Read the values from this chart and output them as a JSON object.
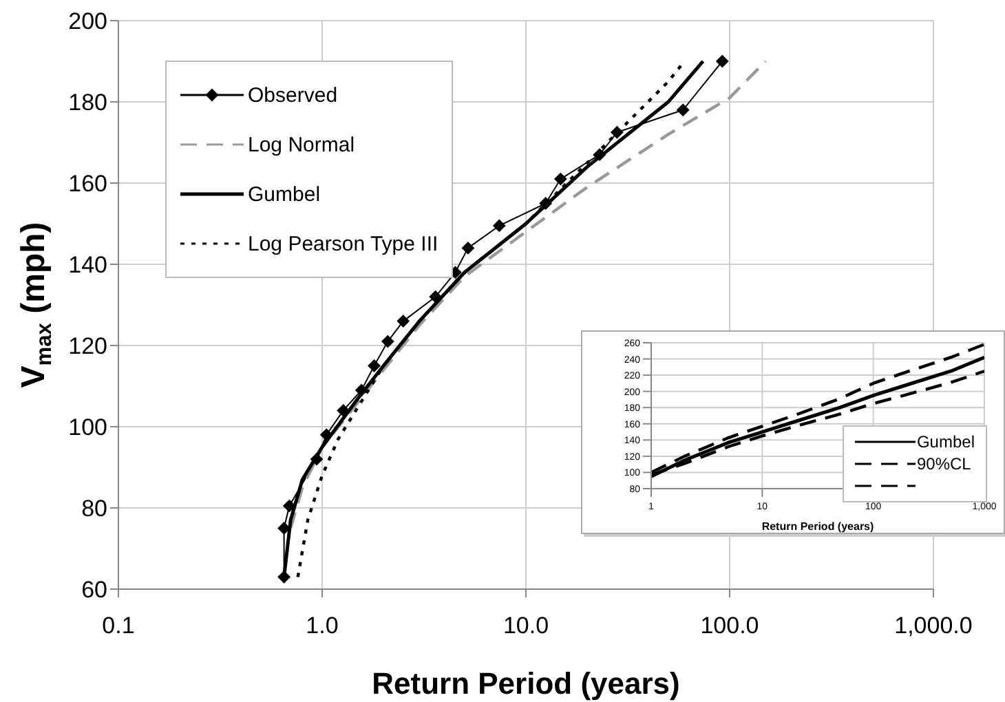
{
  "chart_data": [
    {
      "type": "line",
      "xlabel": "Return Period (years)",
      "ylabel": "V$_{max}$ (mph)",
      "log": "x",
      "grid": true,
      "legend": "top left",
      "xlim": [
        0.1,
        1000
      ],
      "xticks": [
        {
          "value": 0.1,
          "label": "0.1"
        },
        {
          "value": 1,
          "label": "1.0"
        },
        {
          "value": 10,
          "label": "10.0"
        },
        {
          "value": 100,
          "label": "100.0"
        },
        {
          "value": 1000,
          "label": "1,000.0"
        }
      ],
      "ylim": [
        60,
        200
      ],
      "yticks": [
        60,
        80,
        100,
        120,
        140,
        160,
        180,
        200
      ],
      "series": [
        {
          "name": "Observed",
          "color": "#000000",
          "marker": "diamond",
          "line_style": "solid",
          "x": [
            0.65,
            0.65,
            0.69,
            0.94,
            1.05,
            1.27,
            1.56,
            1.8,
            2.1,
            2.5,
            3.6,
            4.5,
            5.2,
            7.4,
            12.5,
            14.8,
            23,
            28,
            59,
            92
          ],
          "values": [
            63,
            75,
            80.5,
            92,
            98,
            104,
            109,
            115,
            121,
            126,
            132,
            138,
            144,
            149.5,
            155,
            161,
            167,
            172.5,
            178,
            190
          ]
        },
        {
          "name": "Log Normal",
          "color": "#999999",
          "marker": "none",
          "line_style": "dashed",
          "x": [
            0.7,
            0.8,
            1,
            1.5,
            2,
            3,
            5,
            10,
            20,
            50,
            100,
            150
          ],
          "values": [
            75,
            85,
            95,
            106,
            114,
            125,
            137,
            148,
            159,
            172,
            181,
            190
          ]
        },
        {
          "name": "Gumbel",
          "color": "#000000",
          "marker": "none",
          "line_style": "solid",
          "x": [
            0.65,
            0.7,
            0.8,
            1,
            1.5,
            2,
            3,
            5,
            10,
            20,
            50,
            74
          ],
          "values": [
            63,
            77,
            87,
            95,
            107,
            115,
            126,
            138,
            150,
            164,
            180,
            190
          ]
        },
        {
          "name": "Log Pearson Type III",
          "color": "#000000",
          "marker": "none",
          "line_style": "dotted",
          "x": [
            0.76,
            0.85,
            1,
            1.2,
            2,
            3,
            5,
            10,
            20,
            50,
            60
          ],
          "values": [
            63,
            77,
            88,
            97,
            115,
            126,
            138,
            150,
            165,
            185,
            190
          ]
        }
      ]
    },
    {
      "type": "line",
      "xlabel": "Return Period (years)",
      "log": "x",
      "grid": true,
      "legend": "bottom right",
      "xlim": [
        1,
        1000
      ],
      "xticks": [
        1,
        10,
        100,
        {
          "value": 1000,
          "label": "1,000"
        }
      ],
      "ylim": [
        80,
        260
      ],
      "yticks": [
        80,
        100,
        120,
        140,
        160,
        180,
        200,
        220,
        240,
        260
      ],
      "series": [
        {
          "name": "Gumbel",
          "color": "#000000",
          "line_style": "solid",
          "x": [
            1,
            2,
            5,
            10,
            20,
            50,
            100,
            200,
            500,
            1000
          ],
          "values": [
            95,
            115,
            137,
            150,
            163,
            180,
            195,
            208,
            225,
            242
          ]
        },
        {
          "name": "90%CL",
          "color": "#000000",
          "line_style": "dashed",
          "x": [
            1,
            2,
            5,
            10,
            20,
            50,
            100,
            200,
            500,
            1000
          ],
          "values": [
            100,
            120,
            143,
            157,
            171,
            191,
            210,
            224,
            242,
            258
          ]
        },
        {
          "color": "#000000",
          "line_style": "dashed",
          "x": [
            1,
            2,
            5,
            10,
            20,
            50,
            100,
            200,
            500,
            1000
          ],
          "values": [
            97,
            111,
            132,
            145,
            157,
            172,
            185,
            196,
            211,
            225
          ]
        }
      ]
    }
  ]
}
